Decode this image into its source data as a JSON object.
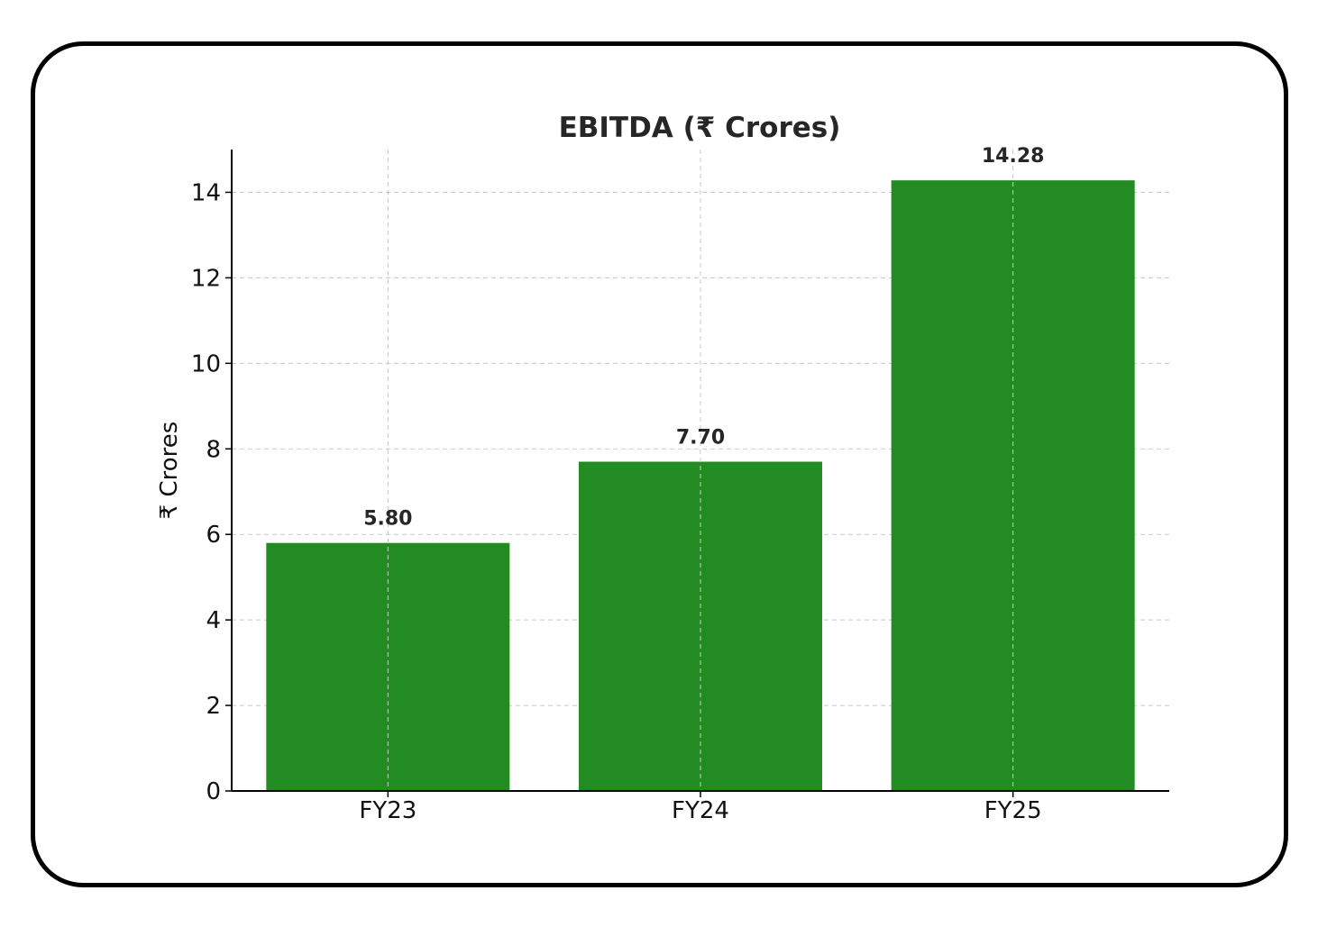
{
  "chart_data": {
    "type": "bar",
    "title": "EBITDA (₹ Crores)",
    "xlabel": "",
    "ylabel": "₹ Crores",
    "categories": [
      "FY23",
      "FY24",
      "FY25"
    ],
    "values": [
      5.8,
      7.7,
      14.28
    ],
    "value_labels": [
      "5.80",
      "7.70",
      "14.28"
    ],
    "ylim": [
      0,
      15
    ],
    "yticks": [
      0,
      2,
      4,
      6,
      8,
      10,
      12,
      14
    ],
    "grid": true,
    "bar_color": "#228B22",
    "grid_color": "#c8c8c8"
  }
}
